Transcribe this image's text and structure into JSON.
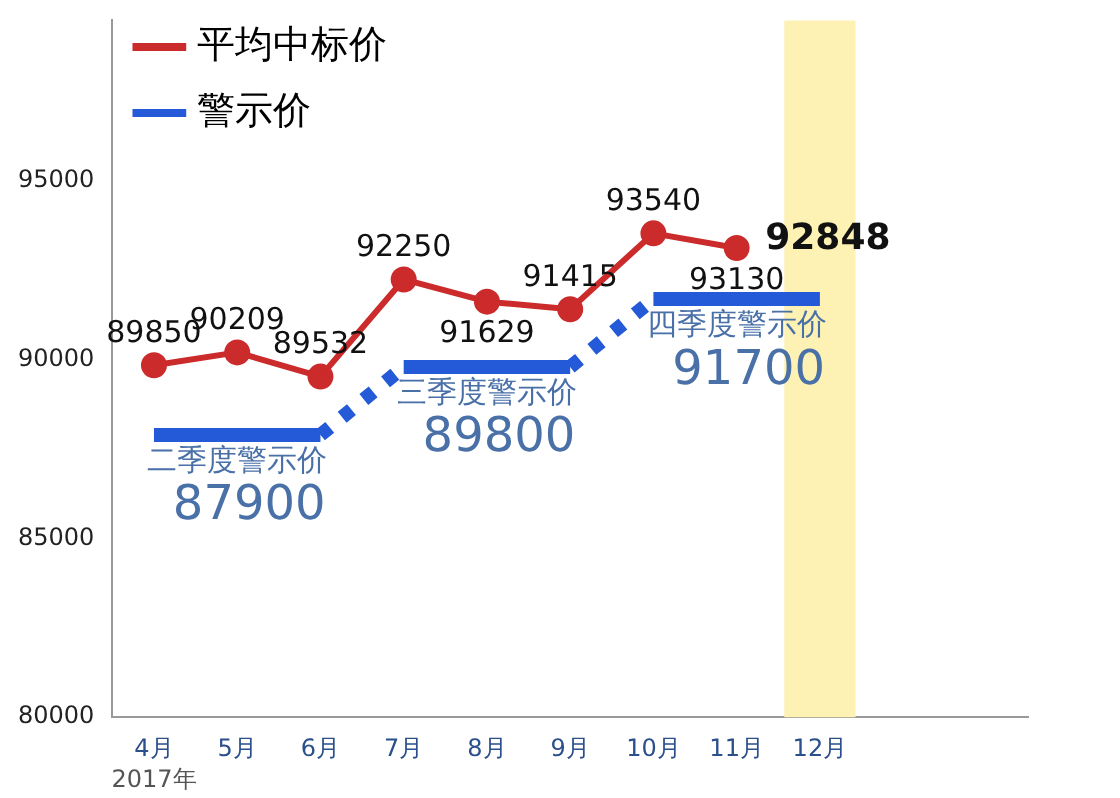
{
  "chart_data": {
    "type": "line",
    "categories": [
      "4月",
      "5月",
      "6月",
      "7月",
      "8月",
      "9月",
      "10月",
      "11月",
      "12月",
      null,
      null
    ],
    "series": [
      {
        "name": "平均中标价",
        "color": "#cc2b2b",
        "values": [
          89850,
          90209,
          89532,
          92250,
          91629,
          91415,
          93540,
          93130,
          null,
          null,
          null
        ],
        "value_labels": [
          "89850",
          "90209",
          "89532",
          "92250",
          "91629",
          "91415",
          "93540",
          "93130",
          null,
          null,
          null
        ],
        "marker": "circle",
        "line_style": "solid"
      },
      {
        "name": "警示价",
        "color": "#2459d8",
        "values": [
          87900,
          87900,
          87900,
          null,
          null,
          null,
          null,
          null,
          null,
          null,
          null
        ],
        "marker": "none",
        "line_style": "solid"
      },
      {
        "color": "#2459d8",
        "values": [
          null,
          null,
          null,
          89800,
          89800,
          89800,
          null,
          null,
          null,
          null,
          null
        ],
        "marker": "none",
        "line_style": "solid"
      },
      {
        "color": "#2459d8",
        "values": [
          null,
          null,
          null,
          null,
          null,
          null,
          91700,
          91700,
          91700,
          null,
          null
        ],
        "marker": "none",
        "line_style": "solid"
      },
      {
        "color": "#2459d8",
        "values": [
          null,
          null,
          87900,
          89800,
          null,
          89800,
          91700,
          null,
          null,
          null,
          null
        ],
        "marker": "none",
        "line_style": "dotted"
      }
    ],
    "ylim": [
      80000,
      99500
    ],
    "yticks": [
      80000,
      85000,
      90000,
      95000
    ],
    "grid": false,
    "legend": "top left",
    "bands": [
      {
        "axis": "x",
        "from": "12月",
        "to": "12月",
        "color": "#fdf2b3"
      }
    ],
    "annotations": [
      {
        "text": "二季度警示价\n87900",
        "x": "5月",
        "y": 87900
      },
      {
        "text": "三季度警示价\n89800",
        "x": "8月",
        "y": 89800
      },
      {
        "text": "四季度警示价\n91700",
        "x": "11月",
        "y": 91700
      },
      "92848",
      "2017年"
    ]
  }
}
